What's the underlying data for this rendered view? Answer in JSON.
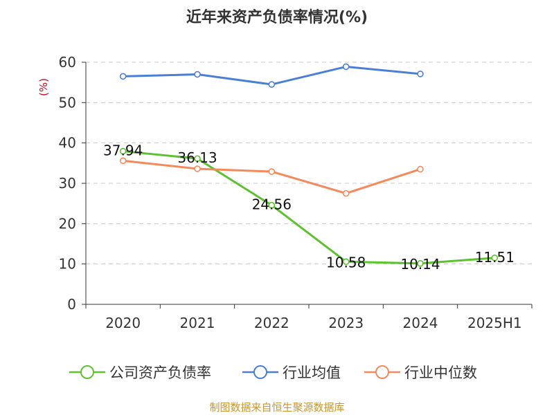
{
  "chart_data": {
    "type": "line",
    "title": "近年来资产负债率情况(%)",
    "ylabel": "(%)",
    "xlabel": "",
    "categories": [
      "2020",
      "2021",
      "2022",
      "2023",
      "2024",
      "2025H1"
    ],
    "ylim": [
      0,
      60
    ],
    "yticks": [
      0,
      10,
      20,
      30,
      40,
      50,
      60
    ],
    "grid": true,
    "legend_position": "bottom",
    "series": [
      {
        "name": "公司资产负债率",
        "color": "#5cc22e",
        "values": [
          37.94,
          36.13,
          24.56,
          10.58,
          10.14,
          11.51
        ],
        "labels": [
          "37.94",
          "36.13",
          "24.56",
          "10.58",
          "10.14",
          "11.51"
        ]
      },
      {
        "name": "行业均值",
        "color": "#4a7fd6",
        "values": [
          56.5,
          57.0,
          54.5,
          58.9,
          57.1,
          null
        ]
      },
      {
        "name": "行业中位数",
        "color": "#f5895a",
        "values": [
          35.6,
          33.6,
          32.9,
          27.5,
          33.5,
          null
        ]
      }
    ],
    "source": "制图数据来自恒生聚源数据库"
  }
}
